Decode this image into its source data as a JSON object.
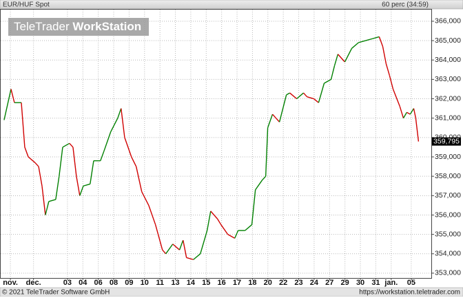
{
  "chart_data": {
    "type": "line",
    "title": "EUR/HUF Spot",
    "subtitle": "60 perc (34:59)",
    "watermark": {
      "brand": "TeleTrader",
      "product": "WorkStation"
    },
    "footer_left": "© 2021 TeleTrader Software GmbH",
    "footer_right": "https://workstation.teletrader.com",
    "last_value": 359.795,
    "last_value_label": "359,795",
    "up_color": "#008000",
    "down_color": "#d00000",
    "grid": true,
    "xlim": [
      -0.33,
      27.6
    ],
    "ylim": [
      352.75,
      366.6
    ],
    "xticks": [
      {
        "value": 0.3,
        "label": "nov."
      },
      {
        "value": 1.8,
        "label": "dec."
      },
      {
        "value": 4,
        "label": "03"
      },
      {
        "value": 5,
        "label": "04"
      },
      {
        "value": 6,
        "label": "06"
      },
      {
        "value": 7,
        "label": "08"
      },
      {
        "value": 8,
        "label": "09"
      },
      {
        "value": 9,
        "label": "10"
      },
      {
        "value": 10,
        "label": "11"
      },
      {
        "value": 11,
        "label": "13"
      },
      {
        "value": 12,
        "label": "14"
      },
      {
        "value": 13,
        "label": "15"
      },
      {
        "value": 14,
        "label": "16"
      },
      {
        "value": 15,
        "label": "17"
      },
      {
        "value": 16,
        "label": "18"
      },
      {
        "value": 17,
        "label": "20"
      },
      {
        "value": 18,
        "label": "22"
      },
      {
        "value": 19,
        "label": "23"
      },
      {
        "value": 20,
        "label": "24"
      },
      {
        "value": 21,
        "label": "27"
      },
      {
        "value": 22,
        "label": "29"
      },
      {
        "value": 23,
        "label": "30"
      },
      {
        "value": 24,
        "label": "31"
      },
      {
        "value": 25,
        "label": "jan."
      },
      {
        "value": 26.3,
        "label": "05"
      }
    ],
    "yticks": [
      {
        "value": 353,
        "label": "353,000"
      },
      {
        "value": 354,
        "label": "354,000"
      },
      {
        "value": 355,
        "label": "355,000"
      },
      {
        "value": 356,
        "label": "356,000"
      },
      {
        "value": 357,
        "label": "357,000"
      },
      {
        "value": 358,
        "label": "358,000"
      },
      {
        "value": 359,
        "label": "359,000"
      },
      {
        "value": 360,
        "label": "360,000"
      },
      {
        "value": 361,
        "label": "361,000"
      },
      {
        "value": 362,
        "label": "362,000"
      },
      {
        "value": 363,
        "label": "363,000"
      },
      {
        "value": 364,
        "label": "364,000"
      },
      {
        "value": 365,
        "label": "365,000"
      },
      {
        "value": 366,
        "label": "366,000"
      }
    ],
    "series": [
      {
        "name": "EUR/HUF Spot",
        "x": [
          -0.11,
          0.34,
          0.56,
          1.01,
          1.23,
          1.46,
          1.9,
          2.13,
          2.35,
          2.57,
          2.79,
          3.24,
          3.46,
          3.69,
          4.13,
          4.36,
          4.58,
          4.8,
          5.03,
          5.47,
          5.7,
          6.14,
          6.37,
          6.81,
          7.26,
          7.48,
          7.71,
          8.15,
          8.46,
          8.82,
          9.27,
          9.71,
          10.16,
          10.38,
          10.83,
          11.27,
          11.5,
          11.72,
          12.17,
          12.62,
          13.06,
          13.29,
          13.73,
          13.96,
          14.4,
          14.85,
          15.07,
          15.52,
          15.96,
          16.19,
          16.63,
          16.86,
          16.99,
          17.3,
          17.75,
          18.2,
          18.42,
          18.87,
          19.31,
          19.54,
          19.98,
          20.29,
          20.65,
          21.1,
          21.32,
          21.54,
          21.99,
          22.44,
          22.88,
          23.33,
          23.78,
          24.22,
          24.45,
          24.67,
          24.89,
          25.12,
          25.56,
          25.79,
          26.01,
          26.23,
          26.46,
          26.59,
          26.77
        ],
        "values": [
          360.9,
          362.5,
          361.8,
          361.8,
          359.5,
          359,
          358.7,
          358.5,
          357.5,
          356,
          356.7,
          356.8,
          358,
          359.5,
          359.7,
          359.5,
          358,
          357,
          357.5,
          357.6,
          358.8,
          358.8,
          359.3,
          360.3,
          361,
          361.5,
          360,
          359,
          358.5,
          357.2,
          356.5,
          355.5,
          354.2,
          354,
          354.5,
          354.2,
          354.7,
          353.8,
          353.7,
          354,
          355.2,
          356.2,
          355.8,
          355.5,
          355,
          354.8,
          355.2,
          355.2,
          355.5,
          357.3,
          357.8,
          358,
          360.5,
          361.2,
          360.8,
          362.2,
          362.3,
          362,
          362.3,
          362.1,
          362,
          361.8,
          362.8,
          363,
          363.7,
          364.3,
          363.9,
          364.6,
          364.9,
          365,
          365.1,
          365.2,
          364.7,
          363.8,
          363.2,
          362.5,
          361.6,
          361,
          361.3,
          361.2,
          361.5,
          361,
          359.795
        ]
      }
    ]
  }
}
